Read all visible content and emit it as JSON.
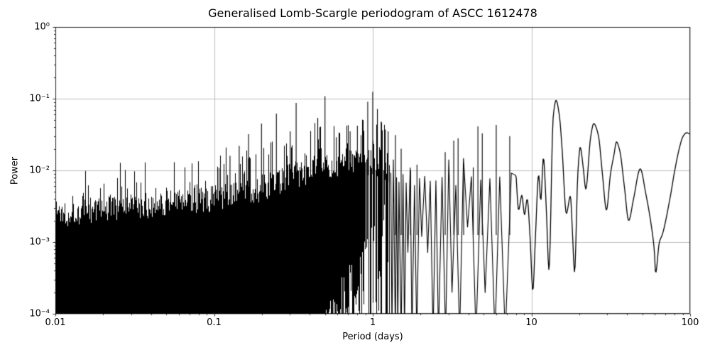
{
  "title": "Generalised Lomb-Scargle periodogram of ASCC 1612478",
  "style": {
    "line_color": "#000000",
    "grid_color": "#b0b0b0",
    "background": "#ffffff",
    "text_color": "#000000"
  },
  "chart_data": {
    "type": "line",
    "title": "Generalised Lomb-Scargle periodogram of ASCC 1612478",
    "xlabel": "Period (days)",
    "ylabel": "Power",
    "xscale": "log",
    "yscale": "log",
    "xlim": [
      0.01,
      100
    ],
    "ylim": [
      0.0001,
      1
    ],
    "grid": true,
    "legend": "none",
    "x_tick_labels": [
      "0.01",
      "0.1",
      "1",
      "10",
      "100"
    ],
    "y_tick_labels": [
      "10⁰",
      "10⁻¹",
      "10⁻²",
      "10⁻³",
      "10⁻⁴"
    ],
    "noise_region": {
      "p_range": [
        0.01,
        8
      ],
      "seed": 1337,
      "solid_to_floor_until_period": 0.45,
      "dense_until_period": 1.3,
      "upper_envelope": [
        [
          0.01,
          0.0024
        ],
        [
          0.02,
          0.0028
        ],
        [
          0.04,
          0.0033
        ],
        [
          0.063,
          0.0038
        ],
        [
          0.1,
          0.004
        ],
        [
          0.14,
          0.005
        ],
        [
          0.2,
          0.0056
        ],
        [
          0.28,
          0.0079
        ],
        [
          0.4,
          0.01
        ],
        [
          0.5,
          0.0112
        ],
        [
          0.63,
          0.0126
        ],
        [
          0.8,
          0.0141
        ],
        [
          1.0,
          0.0158
        ],
        [
          1.12,
          0.0141
        ],
        [
          1.3,
          0.012
        ],
        [
          1.6,
          0.01
        ],
        [
          2.0,
          0.0089
        ],
        [
          2.8,
          0.0089
        ],
        [
          3.5,
          0.01
        ],
        [
          4.5,
          0.0112
        ],
        [
          6.0,
          0.0126
        ],
        [
          7.0,
          0.01
        ],
        [
          8.0,
          0.005
        ]
      ],
      "major_peaks": [
        [
          0.126,
          0.016
        ],
        [
          0.144,
          0.022
        ],
        [
          0.165,
          0.032
        ],
        [
          0.199,
          0.045
        ],
        [
          0.247,
          0.062
        ],
        [
          0.302,
          0.035
        ],
        [
          0.329,
          0.087
        ],
        [
          0.45,
          0.054
        ],
        [
          0.5,
          0.108
        ],
        [
          0.59,
          0.029
        ],
        [
          0.72,
          0.035
        ],
        [
          0.8,
          0.042
        ],
        [
          0.93,
          0.091
        ],
        [
          1.0,
          0.125
        ],
        [
          1.07,
          0.072
        ],
        [
          1.13,
          0.048
        ],
        [
          1.2,
          0.037
        ],
        [
          1.25,
          0.035
        ],
        [
          1.39,
          0.031
        ],
        [
          1.51,
          0.02
        ],
        [
          1.73,
          0.01
        ],
        [
          1.9,
          0.012
        ],
        [
          2.86,
          0.018
        ],
        [
          3.24,
          0.026
        ],
        [
          3.45,
          0.028
        ],
        [
          3.74,
          0.0125
        ],
        [
          4.3,
          0.011
        ],
        [
          4.6,
          0.041
        ],
        [
          4.9,
          0.033
        ],
        [
          6.0,
          0.043
        ],
        [
          7.3,
          0.03
        ]
      ]
    },
    "smooth_curve": [
      [
        8.0,
        0.0085
      ],
      [
        8.3,
        0.0028
      ],
      [
        8.7,
        0.0045
      ],
      [
        9.05,
        0.0024
      ],
      [
        9.4,
        0.004
      ],
      [
        9.8,
        0.0012
      ],
      [
        10.2,
        0.00021
      ],
      [
        10.6,
        0.0012
      ],
      [
        11.1,
        0.0087
      ],
      [
        11.45,
        0.0038
      ],
      [
        11.9,
        0.015
      ],
      [
        12.4,
        0.003
      ],
      [
        12.9,
        0.00041
      ],
      [
        13.7,
        0.054
      ],
      [
        14.3,
        0.095
      ],
      [
        15.0,
        0.058
      ],
      [
        15.6,
        0.02
      ],
      [
        16.6,
        0.0025
      ],
      [
        17.6,
        0.0044
      ],
      [
        18.1,
        0.0015
      ],
      [
        18.7,
        0.00038
      ],
      [
        19.6,
        0.009
      ],
      [
        20.3,
        0.021
      ],
      [
        21.2,
        0.011
      ],
      [
        22.0,
        0.0055
      ],
      [
        23.6,
        0.029
      ],
      [
        24.7,
        0.045
      ],
      [
        26.4,
        0.031
      ],
      [
        28.0,
        0.009
      ],
      [
        29.7,
        0.0028
      ],
      [
        31.5,
        0.009
      ],
      [
        33.2,
        0.017
      ],
      [
        34.3,
        0.025
      ],
      [
        36.0,
        0.019
      ],
      [
        38.5,
        0.006
      ],
      [
        41.0,
        0.002
      ],
      [
        44.0,
        0.004
      ],
      [
        48.5,
        0.0105
      ],
      [
        52.6,
        0.0047
      ],
      [
        56.5,
        0.0019
      ],
      [
        59.5,
        0.00076
      ],
      [
        60.6,
        0.00037
      ],
      [
        64.0,
        0.001
      ],
      [
        67.0,
        0.0013
      ],
      [
        75.0,
        0.0043
      ],
      [
        80.0,
        0.01
      ],
      [
        85.6,
        0.0205
      ],
      [
        90.0,
        0.0295
      ],
      [
        95.0,
        0.0335
      ],
      [
        100.0,
        0.032
      ]
    ]
  }
}
